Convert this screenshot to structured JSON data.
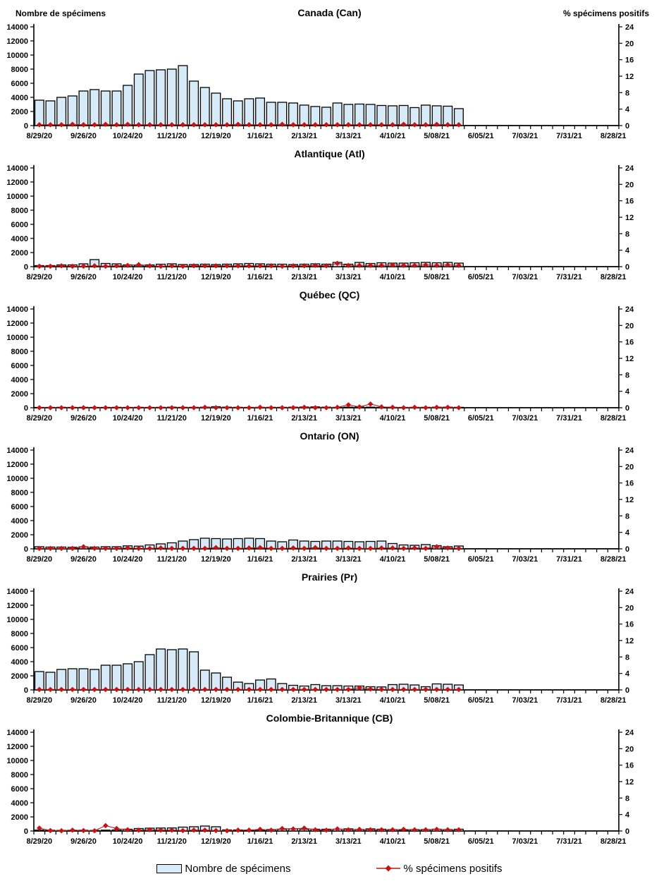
{
  "axes": {
    "left_title": "Nombre de spécimens",
    "right_title": "% spécimens positifs",
    "left_max": 14000,
    "left_step": 2000,
    "right_max": 24,
    "right_step": 4,
    "weeks_total": 53,
    "label_every": 4,
    "x_tick_labels": [
      "8/29/20",
      "9/26/20",
      "10/24/20",
      "11/21/20",
      "12/19/20",
      "1/16/21",
      "2/13/21",
      "3/13/21",
      "4/10/21",
      "5/08/21",
      "6/05/21",
      "7/03/21",
      "7/31/21",
      "8/28/21"
    ]
  },
  "legend": {
    "bar_label": "Nombre de spécimens",
    "line_label": "% spécimens positifs"
  },
  "colors": {
    "bar_fill": "#D6EAF8",
    "bar_stroke": "#000000",
    "line": "#CC1111",
    "text": "#000000"
  },
  "chart_data": [
    {
      "type": "bar+line",
      "title": "Canada (Can)",
      "ylim_left": [
        0,
        14000
      ],
      "ylim_right": [
        0,
        24
      ],
      "x_start": "8/29/20",
      "x_interval": "weekly",
      "specimens": [
        3600,
        3500,
        4000,
        4200,
        4900,
        5100,
        4900,
        4900,
        5700,
        7300,
        7800,
        7900,
        8000,
        8500,
        6300,
        5400,
        4600,
        3800,
        3500,
        3800,
        3900,
        3300,
        3300,
        3200,
        2900,
        2700,
        2600,
        3200,
        3000,
        3050,
        3000,
        2850,
        2800,
        2850,
        2550,
        2900,
        2800,
        2750,
        2400
      ],
      "pct_positive": [
        0.2,
        0.2,
        0.2,
        0.3,
        0.2,
        0.2,
        0.3,
        0.2,
        0.3,
        0.2,
        0.2,
        0.2,
        0.2,
        0.2,
        0.2,
        0.2,
        0.2,
        0.2,
        0.3,
        0.2,
        0.2,
        0.2,
        0.3,
        0.2,
        0.2,
        0.2,
        0.2,
        0.2,
        0.2,
        0.2,
        0.2,
        0.2,
        0.2,
        0.3,
        0.2,
        0.2,
        0.3,
        0.2,
        0.2
      ]
    },
    {
      "type": "bar+line",
      "title": "Atlantique (Atl)",
      "ylim_left": [
        0,
        14000
      ],
      "ylim_right": [
        0,
        24
      ],
      "x_start": "8/29/20",
      "x_interval": "weekly",
      "specimens": [
        150,
        150,
        250,
        250,
        400,
        1000,
        450,
        400,
        250,
        200,
        250,
        350,
        400,
        300,
        300,
        350,
        300,
        350,
        400,
        450,
        400,
        350,
        350,
        300,
        350,
        400,
        350,
        600,
        350,
        600,
        450,
        550,
        500,
        500,
        550,
        600,
        550,
        600,
        500
      ],
      "pct_positive": [
        0.1,
        0.1,
        0.2,
        0.1,
        0.1,
        0.2,
        0.1,
        0.2,
        0.3,
        0.5,
        0.2,
        0.1,
        0.2,
        0.1,
        0.2,
        0.2,
        0.2,
        0.2,
        0.2,
        0.2,
        0.2,
        0.2,
        0.1,
        0.2,
        0.2,
        0.3,
        0.2,
        0.8,
        0.3,
        0.3,
        0.3,
        0.3,
        0.4,
        0.3,
        0.3,
        0.4,
        0.3,
        0.4,
        0.3
      ]
    },
    {
      "type": "bar+line",
      "title": "Québec (QC)",
      "ylim_left": [
        0,
        14000
      ],
      "ylim_right": [
        0,
        24
      ],
      "x_start": "8/29/20",
      "x_interval": "weekly",
      "specimens": [
        50,
        50,
        60,
        50,
        60,
        50,
        50,
        60,
        50,
        60,
        50,
        60,
        80,
        60,
        60,
        80,
        150,
        80,
        60,
        50,
        60,
        60,
        60,
        80,
        100,
        120,
        80,
        60,
        80,
        100,
        80,
        60,
        60,
        50,
        60,
        60,
        80,
        80,
        60
      ],
      "pct_positive": [
        0,
        0,
        0,
        0,
        0,
        0,
        0,
        0,
        0,
        0,
        0,
        0,
        0,
        0,
        0,
        0.1,
        0,
        0,
        0,
        0,
        0.1,
        0,
        0,
        0,
        0.1,
        0,
        0,
        0.1,
        0.7,
        0.2,
        0.9,
        0.2,
        0.1,
        0,
        0.1,
        0,
        0.1,
        0.1,
        0
      ]
    },
    {
      "type": "bar+line",
      "title": "Ontario (ON)",
      "ylim_left": [
        0,
        14000
      ],
      "ylim_right": [
        0,
        24
      ],
      "x_start": "8/29/20",
      "x_interval": "weekly",
      "specimens": [
        300,
        250,
        250,
        220,
        280,
        250,
        300,
        300,
        420,
        380,
        550,
        700,
        850,
        1100,
        1300,
        1500,
        1450,
        1400,
        1450,
        1500,
        1450,
        1100,
        1000,
        1250,
        1100,
        1050,
        1100,
        1100,
        1050,
        1000,
        1050,
        1100,
        750,
        550,
        500,
        600,
        450,
        300,
        400
      ],
      "pct_positive": [
        0.1,
        0.1,
        0.1,
        0.1,
        0.5,
        0.1,
        0.1,
        0.1,
        0.2,
        0.1,
        0.1,
        0.2,
        0.1,
        0.1,
        0.1,
        0.1,
        0.3,
        0.1,
        0.1,
        0.2,
        0.3,
        0.1,
        0.1,
        0.2,
        0.1,
        0.3,
        0.1,
        0.1,
        0.2,
        0.1,
        0.1,
        0.2,
        0.2,
        0.1,
        0.2,
        0.1,
        0.5,
        0.2,
        0.1
      ]
    },
    {
      "type": "bar+line",
      "title": "Prairies (Pr)",
      "ylim_left": [
        0,
        14000
      ],
      "ylim_right": [
        0,
        24
      ],
      "x_start": "8/29/20",
      "x_interval": "weekly",
      "specimens": [
        2600,
        2500,
        2900,
        3000,
        3000,
        2900,
        3500,
        3500,
        3700,
        4000,
        5000,
        5800,
        5700,
        5800,
        5400,
        2800,
        2400,
        1800,
        1100,
        900,
        1400,
        1550,
        900,
        650,
        550,
        750,
        600,
        600,
        550,
        550,
        450,
        420,
        750,
        800,
        700,
        450,
        850,
        800,
        700
      ],
      "pct_positive": [
        0.1,
        0.1,
        0.1,
        0.1,
        0.1,
        0.1,
        0.1,
        0.1,
        0.1,
        0.1,
        0.1,
        0.1,
        0.1,
        0.1,
        0.1,
        0.1,
        0.1,
        0.1,
        0.1,
        0.1,
        0.1,
        0.1,
        0.1,
        0.1,
        0.1,
        0.1,
        0.1,
        0.1,
        0.1,
        0.5,
        0.2,
        0.1,
        0.1,
        0.1,
        0.1,
        0.1,
        0.1,
        0.1,
        0.1
      ]
    },
    {
      "type": "bar+line",
      "title": "Colombie-Britannique (CB)",
      "ylim_left": [
        0,
        14000
      ],
      "ylim_right": [
        0,
        24
      ],
      "x_start": "8/29/20",
      "x_interval": "weekly",
      "specimens": [
        120,
        100,
        80,
        100,
        100,
        80,
        120,
        150,
        250,
        350,
        400,
        420,
        430,
        550,
        600,
        700,
        600,
        150,
        150,
        120,
        150,
        200,
        250,
        300,
        250,
        250,
        250,
        250,
        300,
        200,
        300,
        250,
        200,
        150,
        200,
        200,
        250,
        200,
        250
      ],
      "pct_positive": [
        0.7,
        0.1,
        0.05,
        0.2,
        0.1,
        0.05,
        1.3,
        0.6,
        0.3,
        0.2,
        0.3,
        0.2,
        0.2,
        0.1,
        0.2,
        0.2,
        0.1,
        0.05,
        0.2,
        0.2,
        0.4,
        0.2,
        0.6,
        0.5,
        0.7,
        0.3,
        0.2,
        0.5,
        0.3,
        0.4,
        0.3,
        0.3,
        0.3,
        0.4,
        0.3,
        0.3,
        0.4,
        0.3,
        0.3
      ]
    }
  ]
}
